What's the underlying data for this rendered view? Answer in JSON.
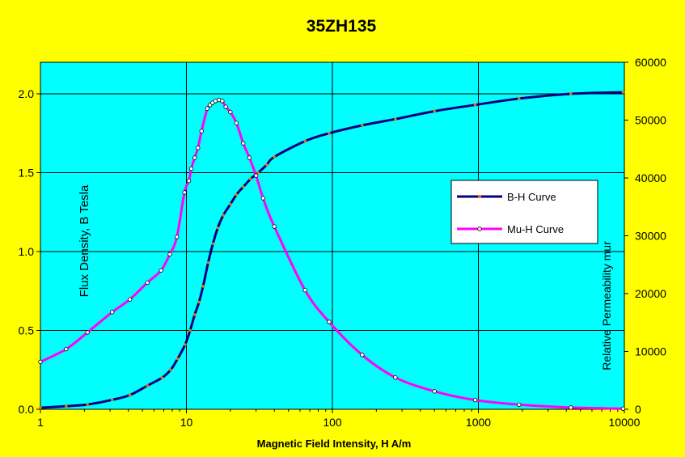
{
  "chart_data": {
    "type": "line",
    "title": "35ZH135",
    "xlabel": "Magnetic Field Intensity, H A/m",
    "ylabel": "Flux Density, B Tesla",
    "y2label": "Relative Permeability mur",
    "xscale": "log",
    "xlim": [
      1,
      10000
    ],
    "ylim": [
      0,
      2.2
    ],
    "y2lim": [
      0,
      60000
    ],
    "x_ticks": [
      "1",
      "10",
      "100",
      "1000",
      "10000"
    ],
    "y_ticks": [
      "0.0",
      "0.5",
      "1.0",
      "1.5",
      "2.0"
    ],
    "y2_ticks": [
      "0",
      "10000",
      "20000",
      "30000",
      "40000",
      "50000",
      "60000"
    ],
    "grid": true,
    "legend": "right",
    "colors": {
      "background": "#ffff00",
      "plot_area": "#00ffff",
      "bh": "#000080",
      "bh_marker": "#ff6600",
      "mu": "#ff00ff",
      "mu_marker_fill": "#ffffff"
    },
    "series": [
      {
        "name": "B-H Curve",
        "axis": "left",
        "x": [
          1,
          1.5,
          2.1,
          3.1,
          4.1,
          5.4,
          6.8,
          7.8,
          8.7,
          9.8,
          10.6,
          11.4,
          12.2,
          13,
          14.1,
          15.2,
          16.4,
          17.9,
          20,
          22,
          24.5,
          27.5,
          31,
          35.5,
          40,
          65,
          95,
          160,
          270,
          500,
          950,
          1900,
          4300,
          9800
        ],
        "y": [
          0.01,
          0.02,
          0.03,
          0.06,
          0.09,
          0.15,
          0.2,
          0.25,
          0.32,
          0.41,
          0.5,
          0.6,
          0.68,
          0.78,
          0.93,
          1.05,
          1.15,
          1.23,
          1.3,
          1.36,
          1.41,
          1.46,
          1.5,
          1.55,
          1.6,
          1.7,
          1.75,
          1.8,
          1.84,
          1.89,
          1.93,
          1.97,
          2.0,
          2.01
        ]
      },
      {
        "name": "Mu-H Curve",
        "axis": "right",
        "x": [
          1,
          1.5,
          2.1,
          3.1,
          4.1,
          5.4,
          6.7,
          7.7,
          8.6,
          9.7,
          10.4,
          10.8,
          11.4,
          12,
          12.7,
          13.9,
          14.5,
          15.1,
          15.8,
          16.7,
          17.6,
          18.6,
          20,
          22,
          24.5,
          27,
          30,
          33.5,
          40,
          65,
          95,
          160,
          270,
          500,
          950,
          1900,
          4300,
          9800
        ],
        "y": [
          8200,
          10400,
          13300,
          16800,
          19000,
          21900,
          24000,
          26800,
          29800,
          37500,
          39500,
          41600,
          43500,
          45200,
          48100,
          52000,
          52600,
          53000,
          53300,
          53500,
          53300,
          52300,
          51400,
          49500,
          46000,
          43500,
          40400,
          36500,
          31600,
          20600,
          15100,
          9400,
          5500,
          3100,
          1600,
          800,
          300,
          100
        ]
      }
    ]
  }
}
